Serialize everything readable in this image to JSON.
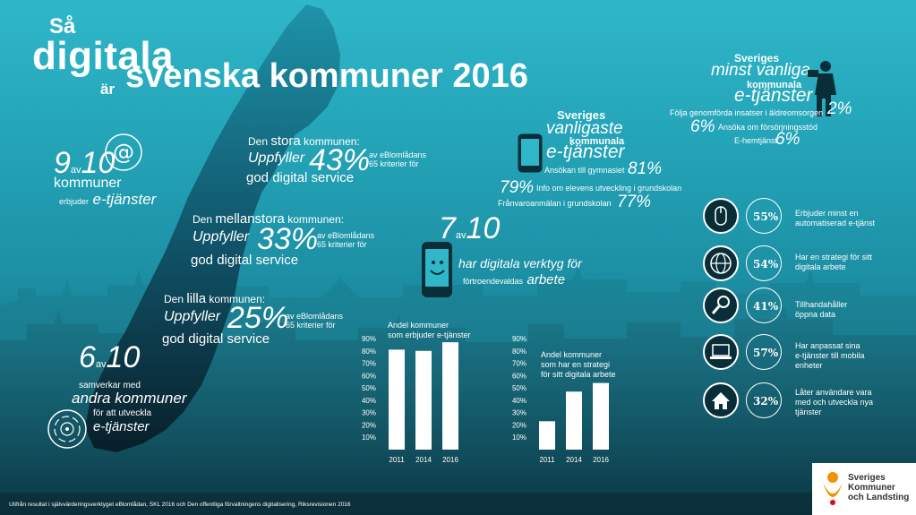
{
  "title": {
    "line1": "Så",
    "line2": "digitala",
    "line3": "är",
    "line4": "svenska kommuner 2016"
  },
  "kpi_eservices": {
    "num": "9",
    "av": "av",
    "denom": "10",
    "line1": "kommuner",
    "line2a": "erbjuder",
    "line2b": "e-tjänster"
  },
  "municipalities": [
    {
      "head_a": "Den",
      "head_b": "stora",
      "head_c": "kommunen:",
      "meets": "Uppfyller",
      "pct": "43%",
      "crit1": "av eBlomlådans",
      "crit2": "65 kriterier för",
      "tail": "god digital service"
    },
    {
      "head_a": "Den",
      "head_b": "mellanstora",
      "head_c": "kommunen:",
      "meets": "Uppfyller",
      "pct": "33%",
      "crit1": "av eBlomlådans",
      "crit2": "65 kriterier för",
      "tail": "god digital service"
    },
    {
      "head_a": "Den",
      "head_b": "lilla",
      "head_c": "kommunen:",
      "meets": "Uppfyller",
      "pct": "25%",
      "crit1": "av eBlomlådans",
      "crit2": "65 kriterier för",
      "tail": "god digital service"
    }
  ],
  "kpi_cooperate": {
    "num": "6",
    "av": "av",
    "denom": "10",
    "line1": "samverkar med",
    "line2": "andra kommuner",
    "line3": "för att utveckla",
    "line4": "e-tjänster"
  },
  "common_services": {
    "h1": "Sveriges",
    "h2": "vanligaste",
    "h3": "kommunala",
    "h4": "e-tjänster",
    "items": [
      {
        "label": "Ansökan till gymnasiet",
        "pct": "81%"
      },
      {
        "label": "Info om elevens utveckling i grundskolan",
        "pct": "79%"
      },
      {
        "label": "Frånvaroanmälan i grundskolan",
        "pct": "77%"
      }
    ]
  },
  "rare_services": {
    "h1": "Sveriges",
    "h2": "minst vanliga",
    "h3": "kommunala",
    "h4": "e-tjänster",
    "items": [
      {
        "label": "Följa genomförda insatser i äldreomsorgen",
        "pct": "2%"
      },
      {
        "label": "Ansöka om försörjningsstöd",
        "pct": "6%"
      },
      {
        "label": "E-hemtjänst",
        "pct": "6%"
      }
    ]
  },
  "kpi_tools": {
    "num": "7",
    "av": "av",
    "denom": "10",
    "line1": "har digitala verktyg för",
    "line2a": "förtroendevaldas",
    "line2b": "arbete"
  },
  "right_stats": [
    {
      "icon": "mouse-icon",
      "pct": "55%",
      "text": [
        "Erbjuder minst en",
        "automatiserad e-tjänst"
      ]
    },
    {
      "icon": "globe-icon",
      "pct": "54%",
      "text": [
        "Har en strategi för sitt",
        "digitala arbete"
      ]
    },
    {
      "icon": "magnifier-icon",
      "pct": "41%",
      "text": [
        "Tillhandahåller",
        "öppna data"
      ]
    },
    {
      "icon": "laptop-icon",
      "pct": "57%",
      "text": [
        "Har anpassat sina",
        "e-tjänster till mobila",
        "enheter"
      ]
    },
    {
      "icon": "house-icon",
      "pct": "32%",
      "text": [
        "Låter användare vara",
        "med och utveckla nya",
        "tjänster"
      ]
    }
  ],
  "chart_data": [
    {
      "type": "bar",
      "title": "Andel kommuner som erbjuder e-tjänster",
      "title_lines": [
        "Andel kommuner",
        "som erbjuder e-tjänster"
      ],
      "categories": [
        "2011",
        "2014",
        "2016"
      ],
      "values": [
        81,
        80,
        87
      ],
      "ylim": [
        0,
        90
      ],
      "yticks": [
        "90%",
        "80%",
        "70%",
        "60%",
        "50%",
        "40%",
        "30%",
        "20%",
        "10%"
      ],
      "ytick_values": [
        90,
        80,
        70,
        60,
        50,
        40,
        30,
        20,
        10
      ],
      "color": "#ffffff"
    },
    {
      "type": "bar",
      "title": "Andel kommuner som har en strategi för sitt digitala arbete",
      "title_lines": [
        "Andel kommuner",
        "som har en strategi",
        "för sitt digitala arbete"
      ],
      "categories": [
        "2011",
        "2014",
        "2016"
      ],
      "values": [
        23,
        47,
        54
      ],
      "ylim": [
        0,
        90
      ],
      "yticks": [
        "90%",
        "80%",
        "70%",
        "60%",
        "50%",
        "40%",
        "30%",
        "20%",
        "10%"
      ],
      "ytick_values": [
        90,
        80,
        70,
        60,
        50,
        40,
        30,
        20,
        10
      ],
      "color": "#ffffff"
    }
  ],
  "footer": "Utifrån resultat i självvärderingsverktyget eBlomlådan, SKL 2016 och Den offentliga förvaltningens digitalisering, Riksrevisionen 2016",
  "logo": {
    "line1": "Sveriges",
    "line2": "Kommuner",
    "line3": "och Landsting"
  },
  "colors": {
    "accent": "#2fb7c9",
    "dark": "#0f4a58",
    "logo_orange": "#f39200"
  }
}
